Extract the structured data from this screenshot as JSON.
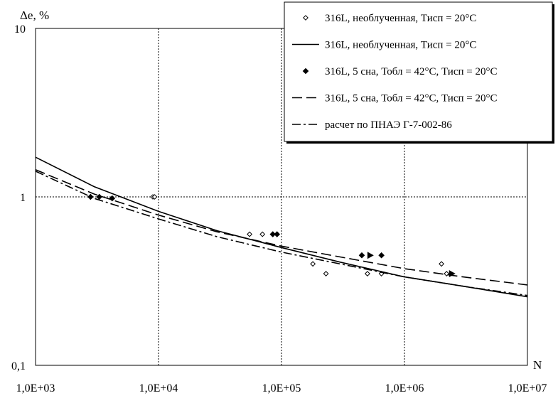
{
  "chart_data": {
    "type": "scatter",
    "title": "",
    "xlabel": "N",
    "ylabel": "Δe, %",
    "xscale": "log",
    "yscale": "log",
    "xlim": [
      1000,
      10000000
    ],
    "ylim": [
      0.1,
      10
    ],
    "grid": true,
    "legend_position": "top-right",
    "x_tick_labels": [
      "1,0E+03",
      "1,0E+04",
      "1,0E+05",
      "1,0E+06",
      "1,0E+07"
    ],
    "y_tick_labels": [
      "0,1",
      "1",
      "10"
    ],
    "series": [
      {
        "name": "316L, необлученная, Тисп = 20°С",
        "kind": "points",
        "marker": "open-diamond",
        "points": [
          [
            9000,
            1.0
          ],
          [
            9300,
            1.0
          ],
          [
            55000,
            0.6
          ],
          [
            70000,
            0.6
          ],
          [
            180000,
            0.4
          ],
          [
            230000,
            0.35
          ],
          [
            500000,
            0.35
          ],
          [
            650000,
            0.35
          ],
          [
            2000000,
            0.4
          ],
          [
            2200000,
            0.35
          ]
        ],
        "runouts": [
          [
            2400000,
            0.35
          ]
        ]
      },
      {
        "name": "316L, необлученная, Тисп = 20°С",
        "kind": "line",
        "style": "solid",
        "points": [
          [
            1000,
            1.72
          ],
          [
            3000,
            1.15
          ],
          [
            10000,
            0.82
          ],
          [
            30000,
            0.63
          ],
          [
            100000,
            0.5
          ],
          [
            300000,
            0.41
          ],
          [
            1000000,
            0.335
          ],
          [
            3000000,
            0.295
          ],
          [
            10000000,
            0.255
          ]
        ]
      },
      {
        "name": "316L, 5 сна, Тобл = 42°С, Тисп = 20°С",
        "kind": "points",
        "marker": "filled-diamond",
        "points": [
          [
            2800,
            1.0
          ],
          [
            3300,
            1.0
          ],
          [
            4200,
            0.98
          ],
          [
            85000,
            0.6
          ],
          [
            92000,
            0.6
          ],
          [
            450000,
            0.45
          ],
          [
            650000,
            0.45
          ]
        ],
        "runouts": [
          [
            520000,
            0.45
          ]
        ]
      },
      {
        "name": "316L, 5 сна, Тобл = 42°С, Тисп = 20°С",
        "kind": "line",
        "style": "dashed",
        "points": [
          [
            1000,
            1.45
          ],
          [
            3000,
            1.04
          ],
          [
            10000,
            0.78
          ],
          [
            30000,
            0.62
          ],
          [
            100000,
            0.51
          ],
          [
            300000,
            0.44
          ],
          [
            1000000,
            0.375
          ],
          [
            3000000,
            0.335
          ],
          [
            10000000,
            0.3
          ]
        ]
      },
      {
        "name": "расчет по ПНАЭ Г-7-002-86",
        "kind": "line",
        "style": "dash-dot",
        "points": [
          [
            1000,
            1.42
          ],
          [
            3000,
            0.98
          ],
          [
            10000,
            0.74
          ],
          [
            30000,
            0.58
          ],
          [
            100000,
            0.47
          ],
          [
            300000,
            0.4
          ],
          [
            1000000,
            0.335
          ],
          [
            3000000,
            0.295
          ],
          [
            10000000,
            0.26
          ]
        ]
      }
    ]
  }
}
